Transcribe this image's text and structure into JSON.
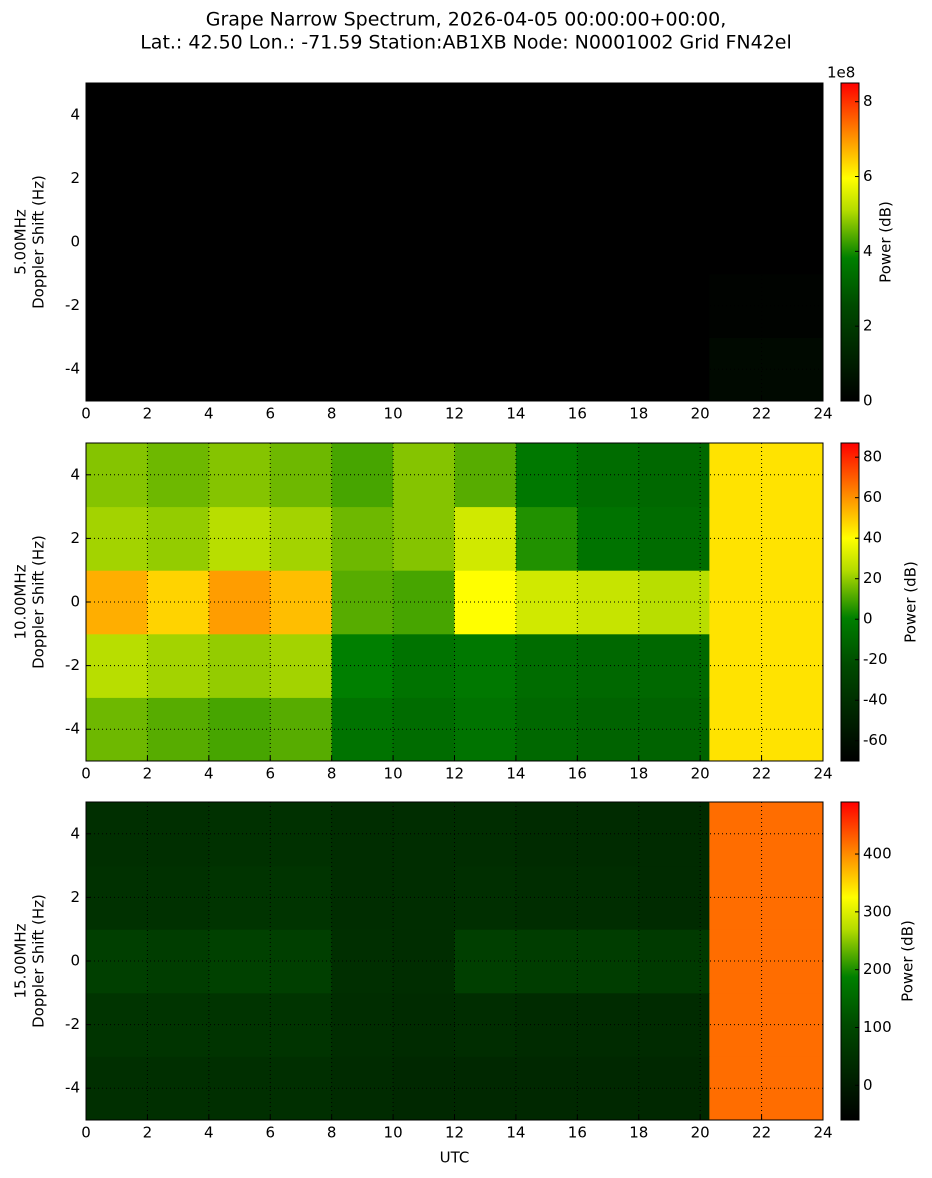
{
  "figure_title": [
    "Grape Narrow Spectrum, 2026-04-05 00:00:00+00:00,",
    "Lat.: 42.50 Lon.: -71.59 Station:AB1XB Node: N0001002 Grid FN42el"
  ],
  "colormap": [
    {
      "pos": 0,
      "color": "#000000"
    },
    {
      "pos": 0.3,
      "color": "#004a00"
    },
    {
      "pos": 0.45,
      "color": "#008000"
    },
    {
      "pos": 0.6,
      "color": "#b4dc00"
    },
    {
      "pos": 0.7,
      "color": "#ffff00"
    },
    {
      "pos": 0.85,
      "color": "#ff8000"
    },
    {
      "pos": 1,
      "color": "#ff0000"
    }
  ],
  "chart_data": [
    {
      "type": "heatmap",
      "ylabel": [
        "5.00MHz",
        "Doppler Shift (Hz)"
      ],
      "colorbar_label": "Power (dB)",
      "colorbar_offset": "1e8",
      "xlim": [
        0,
        24
      ],
      "xticks": [
        0,
        2,
        4,
        6,
        8,
        10,
        12,
        14,
        16,
        18,
        20,
        22,
        24
      ],
      "ylim": [
        -5,
        5
      ],
      "yticks": [
        -4,
        -2,
        0,
        2,
        4
      ],
      "grid": true,
      "xbins": [
        0,
        2,
        4,
        6,
        8,
        10,
        12,
        14,
        16,
        18,
        20.3,
        24
      ],
      "ybins": [
        -5,
        -3,
        -1,
        1,
        3,
        5
      ],
      "clim": [
        0,
        850000000
      ],
      "cticks": [
        {
          "value": 0,
          "label": "0"
        },
        {
          "value": 200000000,
          "label": "2"
        },
        {
          "value": 400000000,
          "label": "4"
        },
        {
          "value": 600000000,
          "label": "6"
        },
        {
          "value": 800000000,
          "label": "8"
        }
      ],
      "z": [
        [
          0,
          0,
          0,
          0,
          0,
          0,
          0,
          0,
          0,
          0,
          30000000
        ],
        [
          0,
          0,
          0,
          0,
          0,
          0,
          0,
          0,
          0,
          0,
          10000000
        ],
        [
          0,
          0,
          0,
          0,
          0,
          0,
          0,
          0,
          0,
          0,
          0
        ],
        [
          0,
          0,
          0,
          0,
          0,
          0,
          0,
          0,
          0,
          0,
          0
        ],
        [
          0,
          0,
          0,
          0,
          0,
          0,
          0,
          0,
          0,
          0,
          0
        ]
      ]
    },
    {
      "type": "heatmap",
      "ylabel": [
        "10.00MHz",
        "Doppler Shift (Hz)"
      ],
      "colorbar_label": "Power (dB)",
      "xlim": [
        0,
        24
      ],
      "xticks": [
        0,
        2,
        4,
        6,
        8,
        10,
        12,
        14,
        16,
        18,
        20,
        22,
        24
      ],
      "ylim": [
        -5,
        5
      ],
      "yticks": [
        -4,
        -2,
        0,
        2,
        4
      ],
      "grid": true,
      "xbins": [
        0,
        2,
        4,
        6,
        8,
        10,
        12,
        14,
        16,
        18,
        20.3,
        24
      ],
      "ybins": [
        -5,
        -3,
        -1,
        1,
        3,
        5
      ],
      "clim": [
        -70,
        87
      ],
      "cticks": [
        -60,
        -40,
        -20,
        0,
        20,
        40,
        60,
        80
      ],
      "z": [
        [
          15,
          12,
          10,
          12,
          -5,
          -8,
          -5,
          -10,
          -12,
          -12,
          45
        ],
        [
          25,
          22,
          20,
          22,
          0,
          -5,
          -3,
          -8,
          -10,
          -10,
          45
        ],
        [
          55,
          48,
          58,
          52,
          12,
          10,
          40,
          30,
          28,
          25,
          45
        ],
        [
          22,
          20,
          25,
          22,
          15,
          18,
          30,
          5,
          -5,
          -8,
          45
        ],
        [
          18,
          15,
          18,
          15,
          10,
          18,
          12,
          -3,
          -8,
          -10,
          45
        ]
      ]
    },
    {
      "type": "heatmap",
      "ylabel": [
        "15.00MHz",
        "Doppler Shift (Hz)"
      ],
      "colorbar_label": "Power (dB)",
      "xlabel": "UTC",
      "xlim": [
        0,
        24
      ],
      "xticks": [
        0,
        2,
        4,
        6,
        8,
        10,
        12,
        14,
        16,
        18,
        20,
        22,
        24
      ],
      "ylim": [
        -5,
        5
      ],
      "yticks": [
        -4,
        -2,
        0,
        2,
        4
      ],
      "grid": true,
      "xbins": [
        0,
        2,
        4,
        6,
        8,
        10,
        12,
        14,
        16,
        18,
        20.3,
        24
      ],
      "ybins": [
        -5,
        -3,
        -1,
        1,
        3,
        5
      ],
      "clim": [
        -60,
        490
      ],
      "cticks": [
        0,
        100,
        200,
        300,
        400
      ],
      "z": [
        [
          45,
          45,
          45,
          45,
          35,
          30,
          30,
          30,
          30,
          30,
          420
        ],
        [
          55,
          55,
          55,
          55,
          40,
          35,
          40,
          35,
          35,
          35,
          420
        ],
        [
          80,
          75,
          85,
          80,
          45,
          40,
          80,
          75,
          75,
          70,
          420
        ],
        [
          50,
          50,
          55,
          55,
          40,
          40,
          45,
          40,
          40,
          35,
          420
        ],
        [
          45,
          45,
          50,
          50,
          40,
          40,
          40,
          35,
          35,
          35,
          420
        ]
      ]
    }
  ]
}
